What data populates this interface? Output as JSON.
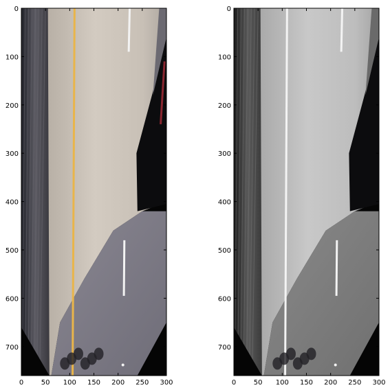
{
  "figure": {
    "panels": [
      {
        "name": "color-birdseye-view",
        "image_kind": "perspective-warped road, color"
      },
      {
        "name": "grayscale-birdseye-view",
        "image_kind": "perspective-warped road, grayscale"
      }
    ],
    "axes": {
      "xlim": [
        0,
        300
      ],
      "ylim": [
        760,
        0
      ],
      "x_ticks": [
        "0",
        "50",
        "100",
        "150",
        "200",
        "250",
        "300"
      ],
      "y_ticks": [
        "0",
        "100",
        "200",
        "300",
        "400",
        "500",
        "600",
        "700"
      ],
      "x_tick_values": [
        0,
        50,
        100,
        150,
        200,
        250,
        300
      ],
      "y_tick_values": [
        0,
        100,
        200,
        300,
        400,
        500,
        600,
        700
      ]
    },
    "colors": {
      "yellow_lane": "#e9b54a",
      "white_lane": "#f3f3f3",
      "pavement_light_color": "#c9c0b5",
      "asphalt_color": "#7c7b86",
      "gray_pavement": "#bcbcbc",
      "gray_asphalt": "#7f7f7f",
      "black": "#050505"
    }
  }
}
